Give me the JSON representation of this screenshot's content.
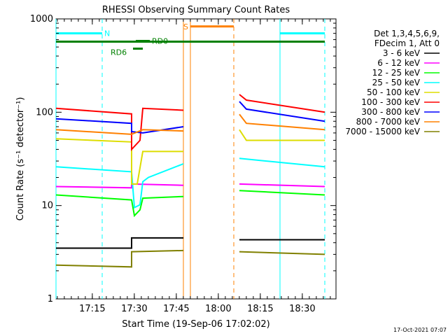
{
  "chart_data": {
    "type": "line",
    "title": "RHESSI Observing Summary Count Rates",
    "xlabel": "Start Time (19-Sep-06 17:02:02)",
    "ylabel": "Count Rate (s⁻¹ detector⁻¹)",
    "y_scale": "log",
    "ylim": [
      1,
      1000
    ],
    "xlim_minutes": [
      0,
      100
    ],
    "x_tick_labels": [
      "17:15",
      "17:30",
      "17:45",
      "18:00",
      "18:15",
      "18:30"
    ],
    "x_tick_minutes": [
      12.97,
      27.97,
      42.97,
      57.97,
      72.97,
      87.97
    ],
    "y_tick_labels": [
      "1",
      "10",
      "100",
      "1000"
    ],
    "y_tick_values": [
      1,
      10,
      100,
      1000
    ],
    "legend_header": [
      "Det 1,3,4,5,6,9,",
      "FDecim 1, Att 0"
    ],
    "legend_position": "right",
    "series": [
      {
        "name": "3 - 6 keV",
        "color": "#000000",
        "segments": [
          [
            [
              0,
              3.5
            ],
            [
              27,
              3.5
            ],
            [
              27,
              4.5
            ],
            [
              45.5,
              4.5
            ]
          ],
          [
            [
              65.5,
              4.3
            ],
            [
              96,
              4.3
            ]
          ]
        ]
      },
      {
        "name": "6 - 12 keV",
        "color": "#ff00ff",
        "segments": [
          [
            [
              0,
              16
            ],
            [
              27,
              15.5
            ],
            [
              27,
              17
            ],
            [
              45.5,
              16.5
            ]
          ],
          [
            [
              65.5,
              17
            ],
            [
              96,
              16
            ]
          ]
        ]
      },
      {
        "name": "12 - 25 keV",
        "color": "#00ff00",
        "segments": [
          [
            [
              0,
              13
            ],
            [
              27,
              11.5
            ],
            [
              28,
              7.8
            ],
            [
              30,
              9
            ],
            [
              31,
              12
            ],
            [
              45.5,
              12.5
            ]
          ],
          [
            [
              65.5,
              14.5
            ],
            [
              96,
              13
            ]
          ]
        ]
      },
      {
        "name": "25 - 50 keV",
        "color": "#00ffff",
        "segments": [
          [
            [
              0,
              26
            ],
            [
              27,
              23
            ],
            [
              28,
              9.5
            ],
            [
              30,
              10.2
            ],
            [
              31,
              18
            ],
            [
              33,
              20
            ],
            [
              45.5,
              28
            ]
          ],
          [
            [
              65.5,
              32
            ],
            [
              96,
              26
            ]
          ]
        ]
      },
      {
        "name": "50 - 100 keV",
        "color": "#dddd00",
        "segments": [
          [
            [
              0,
              52
            ],
            [
              27,
              48
            ],
            [
              27,
              17
            ],
            [
              29,
              17
            ],
            [
              31,
              38
            ],
            [
              45.5,
              38
            ]
          ],
          [
            [
              65.5,
              65
            ],
            [
              68,
              50
            ],
            [
              96,
              50
            ]
          ]
        ]
      },
      {
        "name": "100 - 300 keV",
        "color": "#ff0000",
        "segments": [
          [
            [
              0,
              110
            ],
            [
              27,
              96
            ],
            [
              27,
              40
            ],
            [
              30,
              50
            ],
            [
              31,
              110
            ],
            [
              45.5,
              105
            ]
          ],
          [
            [
              65.5,
              155
            ],
            [
              68,
              135
            ],
            [
              96,
              100
            ]
          ]
        ]
      },
      {
        "name": "300 - 800 keV",
        "color": "#0000ff",
        "segments": [
          [
            [
              0,
              85
            ],
            [
              27,
              76
            ],
            [
              27,
              62
            ],
            [
              31,
              60
            ],
            [
              45.5,
              70
            ]
          ],
          [
            [
              65.5,
              130
            ],
            [
              68,
              108
            ],
            [
              96,
              80
            ]
          ]
        ]
      },
      {
        "name": "800 - 7000 keV",
        "color": "#ff8000",
        "segments": [
          [
            [
              0,
              65
            ],
            [
              27,
              58
            ],
            [
              27,
              58
            ],
            [
              31,
              65
            ],
            [
              45.5,
              63
            ]
          ],
          [
            [
              65.5,
              95
            ],
            [
              68,
              76
            ],
            [
              96,
              65
            ]
          ]
        ]
      },
      {
        "name": "7000 - 15000 keV",
        "color": "#808000",
        "segments": [
          [
            [
              0,
              2.3
            ],
            [
              27,
              2.2
            ],
            [
              27,
              3.2
            ],
            [
              45.5,
              3.3
            ]
          ],
          [
            [
              65.5,
              3.2
            ],
            [
              96,
              3.0
            ]
          ]
        ]
      }
    ],
    "annotations": [
      {
        "text": "N",
        "color": "#00ffff",
        "x_minutes": [
          0,
          16.5
        ],
        "y": 700,
        "style": "solid"
      },
      {
        "text": "",
        "color": "#00ffff",
        "x_minutes": [
          80,
          96
        ],
        "y": 700,
        "style": "solid"
      },
      {
        "text": "RD0",
        "color": "#008000",
        "x_minutes": [
          28.5,
          33.5
        ],
        "y": 580,
        "style": "solid"
      },
      {
        "text": "RD6",
        "color": "#008000",
        "x_minutes": [
          27.5,
          31
        ],
        "y": 480,
        "style": "solid"
      },
      {
        "text": "",
        "color": "#008000",
        "x_minutes": [
          0,
          96
        ],
        "y": 570,
        "style": "solid"
      },
      {
        "text": "S",
        "color": "#ff8000",
        "x_minutes": [
          48,
          63.5
        ],
        "y": 830,
        "style": "solid"
      }
    ],
    "vertical_markers": [
      {
        "x_minutes": 0,
        "color": "#00ffff",
        "style": "solid"
      },
      {
        "x_minutes": 16.5,
        "color": "#00ffff",
        "style": "dashed"
      },
      {
        "x_minutes": 45.5,
        "color": "#ff8000",
        "style": "solid"
      },
      {
        "x_minutes": 48,
        "color": "#ff8000",
        "style": "solid"
      },
      {
        "x_minutes": 63.5,
        "color": "#ff8000",
        "style": "dashed"
      },
      {
        "x_minutes": 80,
        "color": "#00ffff",
        "style": "solid"
      },
      {
        "x_minutes": 96,
        "color": "#00ffff",
        "style": "dashed"
      }
    ],
    "grid": false
  },
  "footer_stamp": "17-Oct-2021 07:07"
}
